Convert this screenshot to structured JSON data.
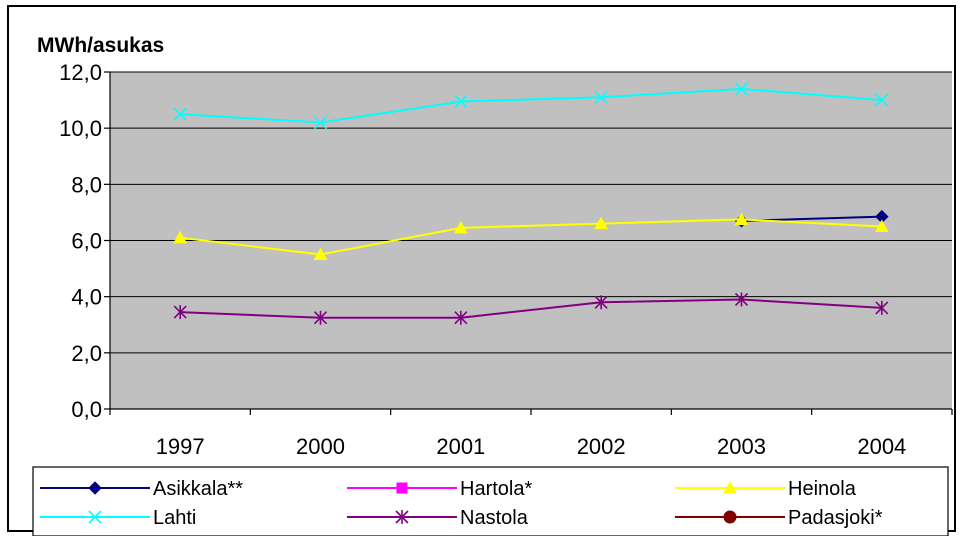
{
  "chart_data": {
    "type": "line",
    "title": "",
    "ylabel": "MWh/asukas",
    "xlabel": "",
    "categories": [
      "1997",
      "2000",
      "2001",
      "2002",
      "2003",
      "2004"
    ],
    "y_ticks": [
      "0,0",
      "2,0",
      "4,0",
      "6,0",
      "8,0",
      "10,0",
      "12,0"
    ],
    "ylim": [
      0,
      12
    ],
    "grid": true,
    "legend_position": "bottom",
    "series": [
      {
        "name": "Asikkala**",
        "color": "#000080",
        "marker": "diamond",
        "values": [
          null,
          null,
          null,
          null,
          6.7,
          6.85
        ]
      },
      {
        "name": "Hartola*",
        "color": "#ff00ff",
        "marker": "square",
        "values": [
          null,
          null,
          null,
          null,
          null,
          null
        ]
      },
      {
        "name": "Heinola",
        "color": "#ffff00",
        "marker": "triangle",
        "values": [
          6.1,
          5.5,
          6.45,
          6.6,
          6.75,
          6.5
        ]
      },
      {
        "name": "Lahti",
        "color": "#00ffff",
        "marker": "x",
        "values": [
          10.5,
          10.2,
          10.95,
          11.1,
          11.4,
          11.0
        ]
      },
      {
        "name": "Nastola",
        "color": "#800080",
        "marker": "star",
        "values": [
          3.45,
          3.25,
          3.25,
          3.8,
          3.9,
          3.6
        ]
      },
      {
        "name": "Padasjoki*",
        "color": "#800000",
        "marker": "circle",
        "values": [
          null,
          null,
          null,
          null,
          null,
          null
        ]
      }
    ]
  }
}
